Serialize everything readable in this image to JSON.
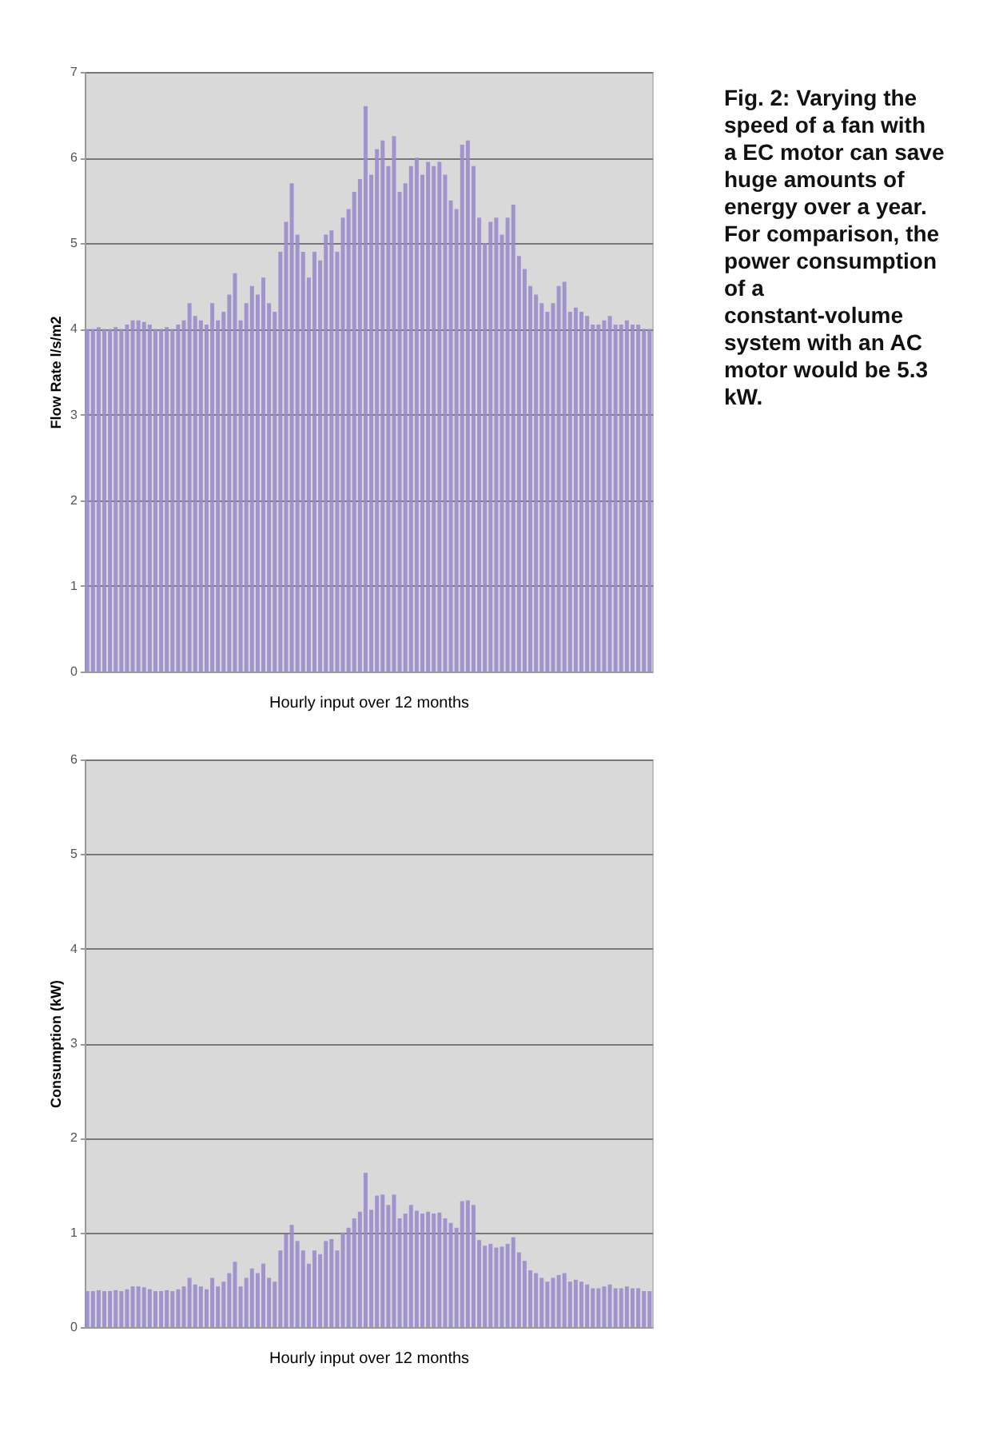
{
  "chart_data": [
    {
      "type": "bar",
      "xlabel": "Hourly input over 12 months",
      "ylabel": "Flow Rate l/s/m2",
      "categories": [
        null,
        null,
        null,
        null,
        null,
        null,
        null,
        null,
        null,
        null,
        null,
        null,
        null,
        null,
        null,
        null,
        null,
        null,
        null,
        null,
        null,
        null,
        null,
        null,
        null,
        null,
        null,
        null,
        null,
        null,
        null,
        null,
        null,
        null,
        null,
        null,
        null,
        null,
        null,
        null,
        null,
        null,
        null,
        null,
        null,
        null,
        null,
        null,
        null,
        null,
        null,
        null,
        null,
        null,
        null,
        null,
        null,
        null,
        null,
        null,
        null,
        null,
        null,
        null,
        null,
        null,
        null,
        null,
        null,
        null,
        null,
        null,
        null,
        null,
        null,
        null,
        null,
        null,
        null,
        null,
        null,
        null,
        null,
        null,
        null,
        null,
        null,
        null,
        null,
        null,
        null,
        null,
        null,
        null,
        null,
        null,
        null,
        null,
        null,
        null
      ],
      "values": [
        4.0,
        4.0,
        4.02,
        4.0,
        4.0,
        4.02,
        4.0,
        4.05,
        4.1,
        4.1,
        4.08,
        4.05,
        4.0,
        4.0,
        4.02,
        4.0,
        4.05,
        4.1,
        4.3,
        4.15,
        4.1,
        4.05,
        4.3,
        4.1,
        4.2,
        4.4,
        4.65,
        4.1,
        4.3,
        4.5,
        4.4,
        4.6,
        4.3,
        4.2,
        4.9,
        5.25,
        5.7,
        5.1,
        4.9,
        4.6,
        4.9,
        4.8,
        5.1,
        5.15,
        4.9,
        5.3,
        5.4,
        5.6,
        5.75,
        6.6,
        5.8,
        6.1,
        6.2,
        5.9,
        6.25,
        5.6,
        5.7,
        5.9,
        6.0,
        5.8,
        5.95,
        5.9,
        5.95,
        5.8,
        5.5,
        5.4,
        6.15,
        6.2,
        5.9,
        5.3,
        5.0,
        5.25,
        5.3,
        5.1,
        5.3,
        5.45,
        4.85,
        4.7,
        4.5,
        4.4,
        4.3,
        4.2,
        4.3,
        4.5,
        4.55,
        4.2,
        4.25,
        4.2,
        4.15,
        4.05,
        4.05,
        4.1,
        4.15,
        4.05,
        4.05,
        4.1,
        4.05,
        4.05,
        4.0,
        4.0
      ],
      "color": "#9a8ccc",
      "ylim": [
        0,
        7
      ],
      "yticks": [
        0,
        1,
        2,
        3,
        4,
        5,
        6,
        7
      ],
      "grid": "y",
      "tick_labels": "y",
      "annotations": [
        "Fig. 2: Varying the speed of a fan with a EC motor can save huge amounts of energy over a year. For comparison, the power consumption of a constant-volume system with an AC motor would be 5.3 kW."
      ]
    },
    {
      "type": "bar",
      "xlabel": "Hourly input over 12 months",
      "ylabel": "Consumption (kW)",
      "categories": [
        null,
        null,
        null,
        null,
        null,
        null,
        null,
        null,
        null,
        null,
        null,
        null,
        null,
        null,
        null,
        null,
        null,
        null,
        null,
        null,
        null,
        null,
        null,
        null,
        null,
        null,
        null,
        null,
        null,
        null,
        null,
        null,
        null,
        null,
        null,
        null,
        null,
        null,
        null,
        null,
        null,
        null,
        null,
        null,
        null,
        null,
        null,
        null,
        null,
        null,
        null,
        null,
        null,
        null,
        null,
        null,
        null,
        null,
        null,
        null,
        null,
        null,
        null,
        null,
        null,
        null,
        null,
        null,
        null,
        null,
        null,
        null,
        null,
        null,
        null,
        null,
        null,
        null,
        null,
        null,
        null,
        null,
        null,
        null,
        null,
        null,
        null,
        null,
        null,
        null,
        null,
        null,
        null,
        null,
        null,
        null,
        null,
        null,
        null,
        null
      ],
      "values": [
        0.38,
        0.38,
        0.39,
        0.38,
        0.38,
        0.39,
        0.38,
        0.4,
        0.43,
        0.43,
        0.42,
        0.4,
        0.38,
        0.38,
        0.39,
        0.38,
        0.4,
        0.43,
        0.52,
        0.45,
        0.43,
        0.4,
        0.52,
        0.43,
        0.48,
        0.57,
        0.69,
        0.43,
        0.52,
        0.62,
        0.57,
        0.67,
        0.52,
        0.48,
        0.81,
        0.98,
        1.08,
        0.91,
        0.81,
        0.67,
        0.81,
        0.77,
        0.91,
        0.93,
        0.81,
        1.0,
        1.05,
        1.15,
        1.22,
        1.63,
        1.24,
        1.39,
        1.4,
        1.29,
        1.4,
        1.15,
        1.2,
        1.29,
        1.23,
        1.2,
        1.22,
        1.2,
        1.21,
        1.15,
        1.1,
        1.05,
        1.33,
        1.34,
        1.29,
        0.92,
        0.86,
        0.88,
        0.84,
        0.85,
        0.88,
        0.95,
        0.79,
        0.7,
        0.6,
        0.57,
        0.52,
        0.48,
        0.52,
        0.55,
        0.57,
        0.48,
        0.5,
        0.48,
        0.45,
        0.41,
        0.41,
        0.43,
        0.45,
        0.41,
        0.41,
        0.43,
        0.41,
        0.41,
        0.38,
        0.38
      ],
      "color": "#9a8ccc",
      "ylim": [
        0,
        6
      ],
      "yticks": [
        0,
        1,
        2,
        3,
        4,
        5,
        6
      ],
      "grid": "y",
      "tick_labels": "y"
    }
  ]
}
